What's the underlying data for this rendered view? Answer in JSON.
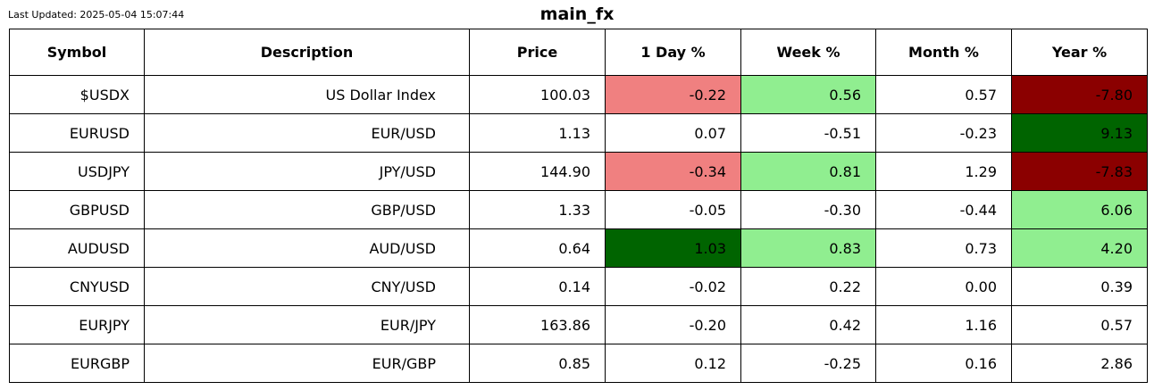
{
  "last_updated": "Last Updated: 2025-05-04 15:07:44",
  "colors": {
    "strong_negative": "#8b0000",
    "negative": "#f08080",
    "positive": "#90ee90",
    "strong_positive": "#006400",
    "neutral": "#ffffff"
  },
  "chart_data": {
    "type": "table",
    "title": "main_fx",
    "columns": [
      "Symbol",
      "Description",
      "Price",
      "1 Day %",
      "Week %",
      "Month %",
      "Year %"
    ],
    "rows": [
      {
        "symbol": "$USDX",
        "description": "US Dollar Index",
        "price": "100.03",
        "day": "-0.22",
        "week": "0.56",
        "month": "0.57",
        "year": "-7.80",
        "shade": {
          "day": "negative",
          "week": "positive",
          "month": "neutral",
          "year": "strong_negative"
        }
      },
      {
        "symbol": "EURUSD",
        "description": "EUR/USD",
        "price": "1.13",
        "day": "0.07",
        "week": "-0.51",
        "month": "-0.23",
        "year": "9.13",
        "shade": {
          "day": "neutral",
          "week": "neutral",
          "month": "neutral",
          "year": "strong_positive"
        }
      },
      {
        "symbol": "USDJPY",
        "description": "JPY/USD",
        "price": "144.90",
        "day": "-0.34",
        "week": "0.81",
        "month": "1.29",
        "year": "-7.83",
        "shade": {
          "day": "negative",
          "week": "positive",
          "month": "neutral",
          "year": "strong_negative"
        }
      },
      {
        "symbol": "GBPUSD",
        "description": "GBP/USD",
        "price": "1.33",
        "day": "-0.05",
        "week": "-0.30",
        "month": "-0.44",
        "year": "6.06",
        "shade": {
          "day": "neutral",
          "week": "neutral",
          "month": "neutral",
          "year": "positive"
        }
      },
      {
        "symbol": "AUDUSD",
        "description": "AUD/USD",
        "price": "0.64",
        "day": "1.03",
        "week": "0.83",
        "month": "0.73",
        "year": "4.20",
        "shade": {
          "day": "strong_positive",
          "week": "positive",
          "month": "neutral",
          "year": "positive"
        }
      },
      {
        "symbol": "CNYUSD",
        "description": "CNY/USD",
        "price": "0.14",
        "day": "-0.02",
        "week": "0.22",
        "month": "0.00",
        "year": "0.39",
        "shade": {
          "day": "neutral",
          "week": "neutral",
          "month": "neutral",
          "year": "neutral"
        }
      },
      {
        "symbol": "EURJPY",
        "description": "EUR/JPY",
        "price": "163.86",
        "day": "-0.20",
        "week": "0.42",
        "month": "1.16",
        "year": "0.57",
        "shade": {
          "day": "neutral",
          "week": "neutral",
          "month": "neutral",
          "year": "neutral"
        }
      },
      {
        "symbol": "EURGBP",
        "description": "EUR/GBP",
        "price": "0.85",
        "day": "0.12",
        "week": "-0.25",
        "month": "0.16",
        "year": "2.86",
        "shade": {
          "day": "neutral",
          "week": "neutral",
          "month": "neutral",
          "year": "neutral"
        }
      }
    ]
  }
}
